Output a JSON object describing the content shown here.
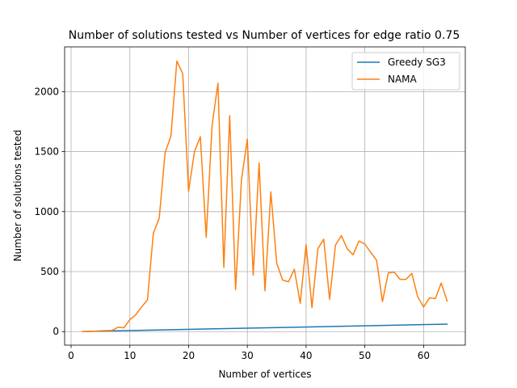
{
  "chart_data": {
    "type": "line",
    "title": "Number of solutions tested vs Number of vertices for edge ratio 0.75",
    "xlabel": "Number of vertices",
    "ylabel": "Number of solutions tested",
    "xlim": [
      -1.1,
      67.1
    ],
    "ylim": [
      -113,
      2373
    ],
    "xticks": [
      0,
      10,
      20,
      30,
      40,
      50,
      60
    ],
    "yticks": [
      0,
      500,
      1000,
      1500,
      2000
    ],
    "grid": true,
    "legend_position": "top-right",
    "colors": {
      "Greedy SG3": "#1f77b4",
      "NAMA": "#ff7f0e"
    },
    "series": [
      {
        "name": "Greedy SG3",
        "x": [
          2,
          64
        ],
        "y": [
          1,
          62
        ]
      },
      {
        "name": "NAMA",
        "x": [
          2,
          3,
          4,
          5,
          6,
          7,
          8,
          9,
          10,
          11,
          12,
          13,
          14,
          15,
          16,
          17,
          18,
          19,
          20,
          21,
          22,
          23,
          24,
          25,
          26,
          27,
          28,
          29,
          30,
          31,
          32,
          33,
          34,
          35,
          36,
          37,
          38,
          39,
          40,
          41,
          42,
          43,
          44,
          45,
          46,
          47,
          48,
          49,
          50,
          51,
          52,
          53,
          54,
          55,
          56,
          57,
          58,
          59,
          60,
          61,
          62,
          63,
          64
        ],
        "y": [
          0,
          1,
          3,
          7,
          8,
          10,
          37,
          32,
          100,
          140,
          205,
          265,
          820,
          945,
          1490,
          1630,
          2255,
          2150,
          1170,
          1500,
          1625,
          785,
          1720,
          2070,
          535,
          1800,
          350,
          1265,
          1605,
          470,
          1405,
          340,
          1165,
          570,
          430,
          415,
          520,
          235,
          725,
          200,
          690,
          770,
          270,
          720,
          800,
          690,
          640,
          755,
          730,
          660,
          595,
          250,
          490,
          495,
          435,
          435,
          485,
          290,
          205,
          280,
          275,
          405,
          255
        ]
      }
    ]
  }
}
